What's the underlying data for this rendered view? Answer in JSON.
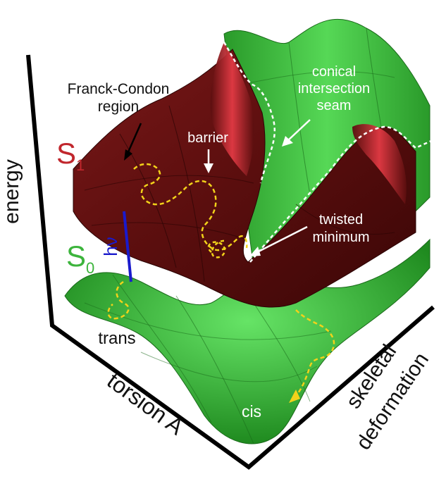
{
  "axes": {
    "energy": "energy",
    "torsion": "torsion A",
    "skeletal_line1": "skeletal",
    "skeletal_line2": "deformation"
  },
  "states": {
    "s1_letter": "S",
    "s1_sub": "1",
    "s0_letter": "S",
    "s0_sub": "0",
    "s1_color": "#c1272d",
    "s0_color": "#3cb43c"
  },
  "excitation": {
    "label": "hν",
    "color": "#1a1acc"
  },
  "annotations": {
    "fc_line1": "Franck-Condon",
    "fc_line2": "region",
    "barrier": "barrier",
    "ci_line1": "conical",
    "ci_line2": "intersection",
    "ci_line3": "seam",
    "tm_line1": "twisted",
    "tm_line2": "minimum",
    "trans": "trans",
    "cis": "cis"
  },
  "colors": {
    "s1_surface": "#6e1414",
    "s1_highlight": "#d8303a",
    "s0_surface": "#3fc23f",
    "s0_dark": "#1f7a1f",
    "path": "#f2d21a"
  }
}
